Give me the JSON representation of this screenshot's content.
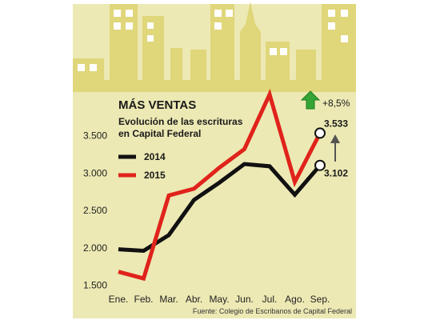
{
  "chart_data": {
    "type": "line",
    "title": "MÁS VENTAS",
    "subtitle_line1": "Evolución de las escrituras",
    "subtitle_line2": "en Capital Federal",
    "categories": [
      "Ene.",
      "Feb.",
      "Mar.",
      "Abr.",
      "May.",
      "Jun.",
      "Jul.",
      "Ago.",
      "Sep."
    ],
    "series": [
      {
        "name": "2014",
        "color": "#111111",
        "values": [
          1980,
          1960,
          2170,
          2640,
          2870,
          3120,
          3090,
          2710,
          3102
        ]
      },
      {
        "name": "2015",
        "color": "#e0231b",
        "values": [
          1680,
          1590,
          2700,
          2790,
          3070,
          3320,
          4050,
          2880,
          3533
        ]
      }
    ],
    "yticks": [
      "1.500",
      "2.000",
      "2.500",
      "3.000",
      "3.500"
    ],
    "ytick_values": [
      1500,
      2000,
      2500,
      3000,
      3500
    ],
    "ylim": [
      1500,
      4100
    ],
    "grid": false,
    "legend_position": "top-left",
    "end_labels": {
      "s2015": "3.533",
      "s2014": "3.102"
    },
    "change_label": "+8,5%",
    "source": "Fuente: Colegio de Escribanos de Capital Federal"
  },
  "colors": {
    "background": "#ece9b4",
    "buildings": "#e0d67a",
    "windows": "#ffffff",
    "arrow_up": "#35a535"
  }
}
